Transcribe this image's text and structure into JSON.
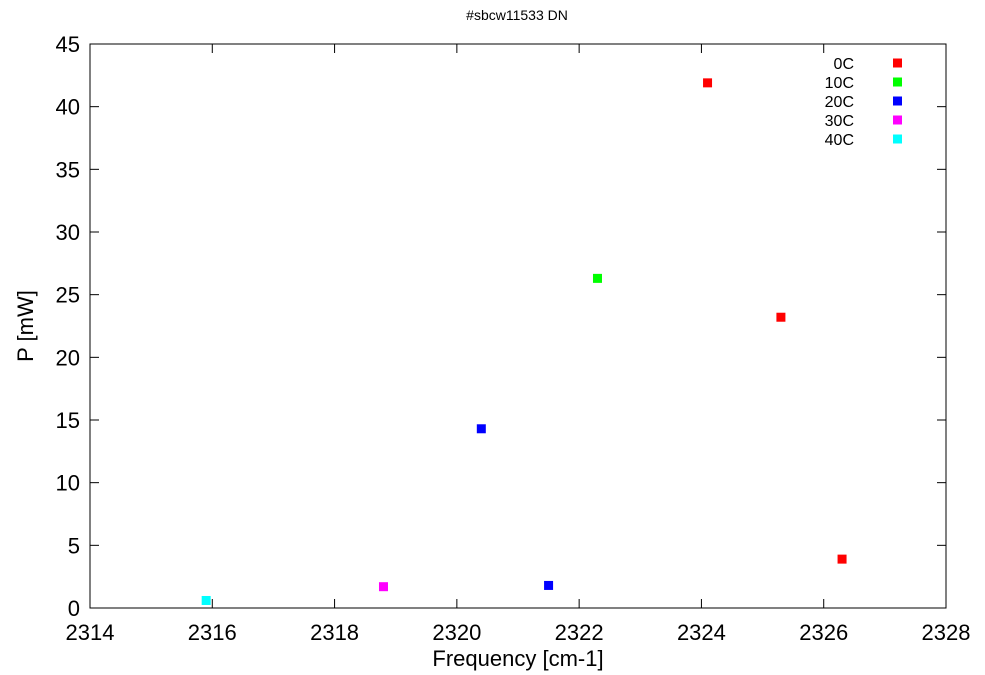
{
  "chart_data": {
    "type": "scatter",
    "title": "#sbcw11533 DN",
    "xlabel": "Frequency [cm-1]",
    "ylabel": "P [mW]",
    "xlim": [
      2314,
      2328
    ],
    "ylim": [
      0,
      45
    ],
    "xticks": [
      2314,
      2316,
      2318,
      2320,
      2322,
      2324,
      2326,
      2328
    ],
    "yticks": [
      0,
      5,
      10,
      15,
      20,
      25,
      30,
      35,
      40,
      45
    ],
    "grid": false,
    "legend_position": "top-right",
    "series": [
      {
        "name": "0C",
        "color": "#ff0000",
        "points": [
          [
            2324.1,
            41.9
          ],
          [
            2325.3,
            23.2
          ],
          [
            2326.3,
            3.9
          ]
        ]
      },
      {
        "name": "10C",
        "color": "#00ff00",
        "points": [
          [
            2322.3,
            26.3
          ]
        ]
      },
      {
        "name": "20C",
        "color": "#0000ff",
        "points": [
          [
            2320.4,
            14.3
          ],
          [
            2321.5,
            1.8
          ]
        ]
      },
      {
        "name": "30C",
        "color": "#ff00ff",
        "points": [
          [
            2318.8,
            1.7
          ]
        ]
      },
      {
        "name": "40C",
        "color": "#00ffff",
        "points": [
          [
            2315.9,
            0.6
          ]
        ]
      }
    ]
  }
}
